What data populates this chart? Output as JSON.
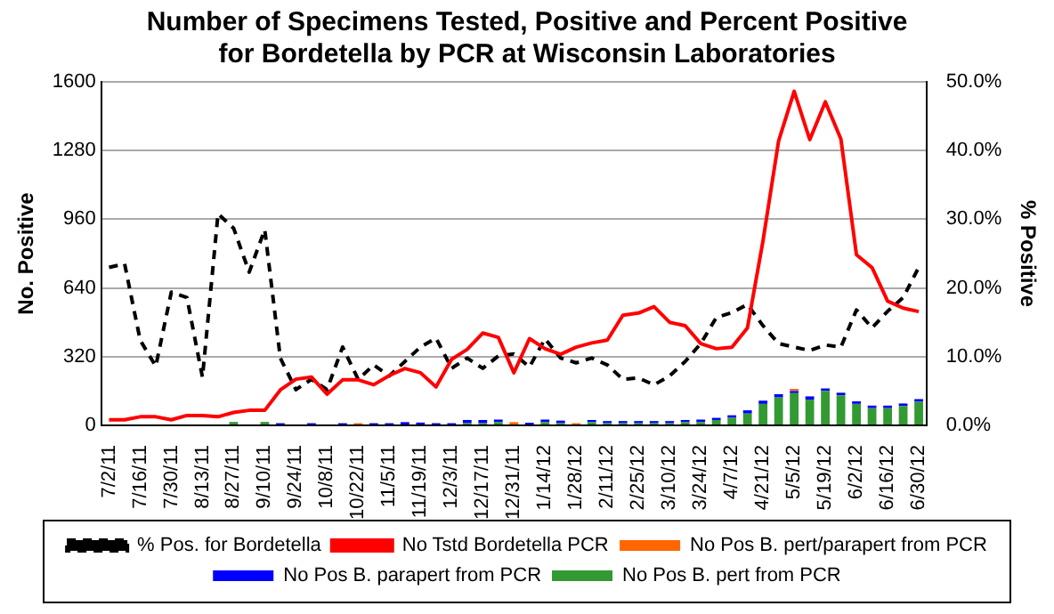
{
  "chart_data": {
    "type": "bar",
    "stacked": true,
    "title": "Number of Specimens Tested, Positive and Percent Positive for Bordetella by PCR at Wisconsin Laboratories",
    "ylabel": "No. Positive",
    "y2label": "% Positive",
    "categories": [
      "7/2/11",
      null,
      "7/16/11",
      null,
      "7/30/11",
      null,
      "8/13/11",
      null,
      "8/27/11",
      null,
      "9/10/11",
      null,
      "9/24/11",
      null,
      "10/8/11",
      null,
      "10/22/11",
      null,
      "11/5/11",
      null,
      "11/19/11",
      null,
      "12/3/11",
      null,
      "12/17/11",
      null,
      "12/31/11",
      null,
      "1/14/12",
      null,
      "1/28/12",
      null,
      "2/11/12",
      null,
      "2/25/12",
      null,
      "3/10/12",
      null,
      "3/24/12",
      null,
      "4/7/12",
      null,
      "4/21/12",
      null,
      "5/5/12",
      null,
      "5/19/12",
      null,
      "6/2/12",
      null,
      "6/16/12",
      null,
      "6/30/12"
    ],
    "series": [
      {
        "name": "No Pos B. pert from PCR",
        "color": "#339933",
        "values": [
          0,
          0,
          0,
          0,
          0,
          0,
          0,
          0,
          16,
          0,
          16,
          0,
          0,
          0,
          0,
          0,
          0,
          0,
          0,
          0,
          0,
          0,
          0,
          10,
          10,
          15,
          0,
          0,
          15,
          10,
          0,
          15,
          10,
          10,
          10,
          10,
          10,
          15,
          15,
          25,
          35,
          55,
          100,
          130,
          150,
          120,
          160,
          140,
          100,
          80,
          80,
          90,
          110
        ]
      },
      {
        "name": "No Pos B. parapert from PCR",
        "color": "#0000ff",
        "values": [
          0,
          0,
          0,
          0,
          0,
          0,
          0,
          0,
          0,
          0,
          0,
          10,
          0,
          10,
          0,
          10,
          0,
          10,
          10,
          15,
          13,
          10,
          10,
          15,
          15,
          12,
          0,
          12,
          12,
          12,
          0,
          10,
          10,
          10,
          10,
          10,
          10,
          10,
          12,
          10,
          12,
          15,
          15,
          15,
          10,
          15,
          12,
          12,
          12,
          12,
          12,
          12,
          12
        ]
      },
      {
        "name": "No Pos B. pert/parapert from PCR",
        "color": "#ff6600",
        "values": [
          0,
          0,
          0,
          0,
          0,
          0,
          0,
          0,
          0,
          0,
          0,
          0,
          0,
          0,
          0,
          0,
          10,
          0,
          0,
          0,
          0,
          0,
          0,
          0,
          0,
          0,
          15,
          0,
          0,
          0,
          10,
          0,
          0,
          0,
          0,
          0,
          0,
          0,
          0,
          0,
          0,
          0,
          0,
          0,
          10,
          0,
          0,
          0,
          0,
          0,
          0,
          0,
          0
        ]
      },
      {
        "name": "No Tstd Bordetella PCR",
        "type": "line",
        "color": "#ff0000",
        "line_style": "solid",
        "values": [
          26,
          26,
          40,
          40,
          26,
          46,
          46,
          40,
          60,
          70,
          70,
          165,
          215,
          225,
          145,
          212,
          212,
          189,
          232,
          265,
          245,
          179,
          308,
          354,
          430,
          410,
          245,
          404,
          357,
          331,
          364,
          384,
          397,
          513,
          523,
          553,
          480,
          464,
          381,
          357,
          364,
          454,
          861,
          1325,
          1556,
          1331,
          1507,
          1334,
          795,
          735,
          579,
          546,
          530
        ]
      },
      {
        "name": "% Pos. for Bordetella",
        "type": "line",
        "axis": "y2",
        "color": "#000000",
        "line_style": "dashed",
        "values": [
          23.0,
          23.5,
          12.4,
          8.6,
          19.4,
          18.6,
          7.0,
          30.8,
          28.7,
          22.3,
          28.5,
          9.8,
          5.2,
          6.7,
          5.2,
          11.4,
          6.7,
          8.8,
          7.2,
          9.3,
          11.4,
          12.7,
          8.3,
          9.8,
          8.3,
          10.1,
          10.4,
          8.5,
          12.6,
          9.8,
          9.1,
          9.8,
          8.8,
          6.7,
          6.9,
          5.9,
          7.2,
          9.3,
          11.9,
          15.7,
          16.4,
          17.6,
          14.5,
          11.9,
          11.4,
          10.9,
          11.7,
          11.4,
          16.8,
          14.2,
          16.6,
          18.6,
          23.0
        ]
      }
    ],
    "ylim": [
      0,
      1600
    ],
    "yticks": [
      0,
      320,
      640,
      960,
      1280,
      1600
    ],
    "y2lim": [
      0,
      50
    ],
    "y2ticks": [
      {
        "value": 0,
        "label": "0.0%"
      },
      {
        "value": 10,
        "label": "10.0%"
      },
      {
        "value": 20,
        "label": "20.0%"
      },
      {
        "value": 30,
        "label": "30.0%"
      },
      {
        "value": 40,
        "label": "40.0%"
      },
      {
        "value": 50,
        "label": "50.0%"
      }
    ],
    "grid": "y",
    "legend": "bottom",
    "marker": "none"
  }
}
